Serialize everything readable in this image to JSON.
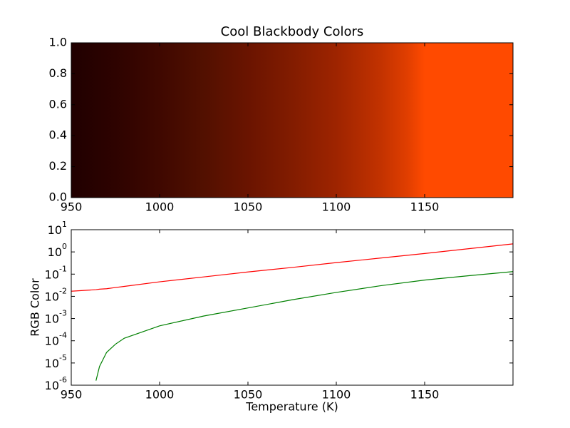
{
  "chart_data": [
    {
      "type": "image",
      "title": "Cool Blackbody Colors",
      "x": [
        950,
        975,
        1000,
        1025,
        1050,
        1075,
        1100,
        1125,
        1140,
        1150,
        1200
      ],
      "colors": [
        "#200000",
        "#2e0300",
        "#3f0800",
        "#521000",
        "#6a1400",
        "#821c00",
        "#9e2400",
        "#c23200",
        "#e03e00",
        "#ff4a00",
        "#ff4a00"
      ],
      "xlim": [
        950,
        1200
      ],
      "xticks": [
        950,
        1000,
        1050,
        1100,
        1150
      ],
      "ylim": [
        0,
        1
      ],
      "yticks": [
        {
          "value": 0,
          "label": "0.0"
        },
        {
          "value": 0.2,
          "label": "0.2"
        },
        {
          "value": 0.4,
          "label": "0.4"
        },
        {
          "value": 0.6,
          "label": "0.6"
        },
        {
          "value": 0.8,
          "label": "0.8"
        },
        {
          "value": 1,
          "label": "1.0"
        }
      ]
    },
    {
      "type": "line",
      "xlabel": "Temperature (K)",
      "ylabel": "RGB Color",
      "log_y": true,
      "x": [
        950,
        964,
        966,
        970,
        975,
        980,
        1000,
        1025,
        1050,
        1075,
        1100,
        1125,
        1150,
        1175,
        1200
      ],
      "series": [
        {
          "name": "red",
          "color": "#ff0000",
          "values": [
            0.017,
            0.02,
            0.021,
            0.022,
            0.025,
            0.028,
            0.045,
            0.075,
            0.125,
            0.2,
            0.33,
            0.53,
            0.85,
            1.4,
            2.3
          ]
        },
        {
          "name": "green",
          "color": "#008000",
          "values": [
            null,
            1.6e-06,
            7e-06,
            3e-05,
            7e-05,
            0.00013,
            0.00047,
            0.0013,
            0.003,
            0.007,
            0.015,
            0.03,
            0.054,
            0.085,
            0.13
          ]
        }
      ],
      "xlim": [
        950,
        1200
      ],
      "xticks": [
        950,
        1000,
        1050,
        1100,
        1150
      ],
      "ylim": [
        1e-06,
        10
      ],
      "yticks": [
        {
          "value": 1e-06,
          "label": "10",
          "exponent": "-6"
        },
        {
          "value": 1e-05,
          "label": "10",
          "exponent": "-5"
        },
        {
          "value": 0.0001,
          "label": "10",
          "exponent": "-4"
        },
        {
          "value": 0.001,
          "label": "10",
          "exponent": "-3"
        },
        {
          "value": 0.01,
          "label": "10",
          "exponent": "-2"
        },
        {
          "value": 0.1,
          "label": "10",
          "exponent": "-1"
        },
        {
          "value": 1,
          "label": "10",
          "exponent": "0"
        },
        {
          "value": 10,
          "label": "10",
          "exponent": "1"
        }
      ]
    }
  ]
}
